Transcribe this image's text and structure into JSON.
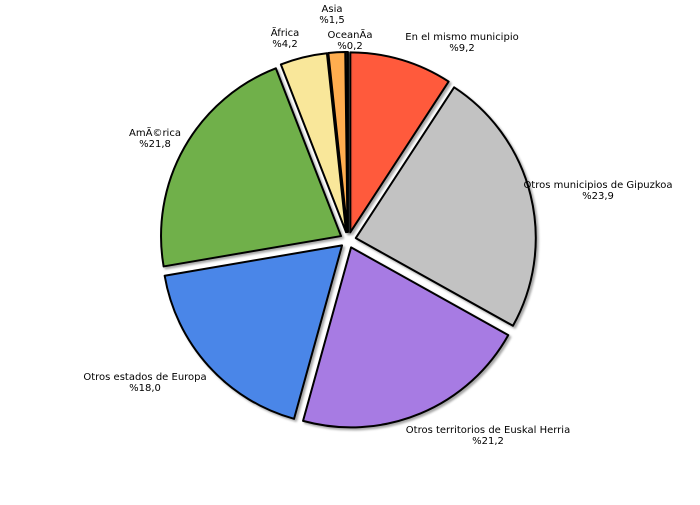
{
  "chart_data": {
    "type": "pie",
    "title": "",
    "slices": [
      {
        "label": "En el mismo municipio",
        "value_label": "%9,2",
        "value": 9.2,
        "color": "#ff5a3c"
      },
      {
        "label": "Otros municipios de Gipuzkoa",
        "value_label": "%23,9",
        "value": 23.9,
        "color": "#c2c2c2"
      },
      {
        "label": "Otros territorios de Euskal Herria",
        "value_label": "%21,2",
        "value": 21.2,
        "color": "#a77be3"
      },
      {
        "label": "Otros estados de Europa",
        "value_label": "%18,0",
        "value": 18.0,
        "color": "#4a86e8"
      },
      {
        "label": "AmÃ©rica",
        "value_label": "%21,8",
        "value": 21.8,
        "color": "#70b04a"
      },
      {
        "label": "Ãfrica",
        "value_label": "%4,2",
        "value": 4.2,
        "color": "#f9e79a"
      },
      {
        "label": "Asia",
        "value_label": "%1,5",
        "value": 1.5,
        "color": "#ffad4f"
      },
      {
        "label": "OceanÃ­a",
        "value_label": "%0,2",
        "value": 0.2,
        "color": "#333333"
      }
    ]
  }
}
